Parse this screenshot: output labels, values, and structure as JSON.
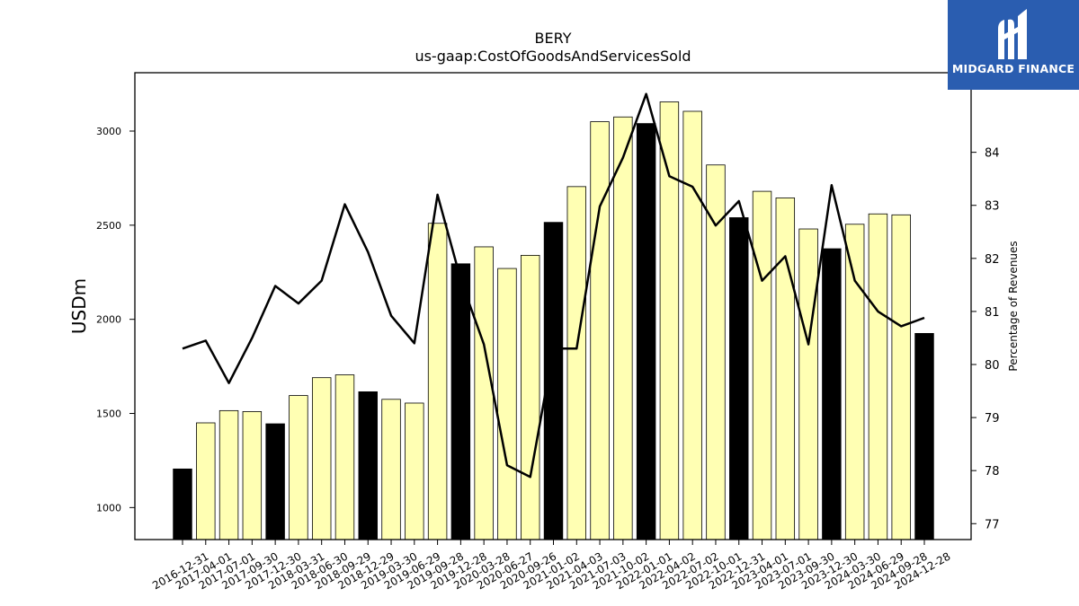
{
  "chart_data": {
    "type": "bar",
    "title": "BERY",
    "subtitle": "us-gaap:CostOfGoodsAndServicesSold",
    "ylabel": "USDm",
    "y2label": "Percentage of Revenues",
    "ylim": [
      830,
      3310
    ],
    "y2lim": [
      76.7,
      85.5
    ],
    "yticks": [
      1000,
      1500,
      2000,
      2500,
      3000
    ],
    "y2ticks": [
      77,
      78,
      79,
      80,
      81,
      82,
      83,
      84
    ],
    "categories": [
      "2016-12-31",
      "2017-04-01",
      "2017-07-01",
      "2017-09-30",
      "2017-12-30",
      "2018-03-31",
      "2018-06-30",
      "2018-09-29",
      "2018-12-29",
      "2019-03-30",
      "2019-06-29",
      "2019-09-28",
      "2019-12-28",
      "2020-03-28",
      "2020-06-27",
      "2020-09-26",
      "2021-01-02",
      "2021-04-03",
      "2021-07-03",
      "2021-10-02",
      "2022-01-01",
      "2022-04-02",
      "2022-07-02",
      "2022-10-01",
      "2022-12-31",
      "2023-04-01",
      "2023-07-01",
      "2023-09-30",
      "2023-12-30",
      "2024-03-30",
      "2024-06-29",
      "2024-09-28",
      "2024-12-28"
    ],
    "series": [
      {
        "kind": "bar",
        "values": [
          1205,
          1450,
          1515,
          1510,
          1445,
          1595,
          1690,
          1705,
          1615,
          1575,
          1555,
          2510,
          2295,
          2385,
          2270,
          2340,
          2515,
          2705,
          3050,
          3075,
          3040,
          3155,
          3105,
          2820,
          2540,
          2680,
          2645,
          2480,
          2375,
          2505,
          2560,
          2555,
          1925
        ],
        "highlight_every": 4,
        "highlight_offset": 0,
        "color": "#ffffb3",
        "highlight_color": "#000000"
      },
      {
        "kind": "line",
        "axis": "right",
        "values": [
          80.3,
          80.45,
          79.65,
          80.5,
          81.48,
          81.15,
          81.58,
          83.02,
          82.12,
          80.92,
          80.4,
          83.2,
          81.6,
          80.38,
          78.1,
          77.88,
          80.3,
          80.3,
          82.98,
          83.9,
          85.1,
          83.55,
          83.35,
          82.62,
          83.08,
          81.58,
          82.04,
          80.38,
          83.38,
          81.58,
          81.0,
          80.72,
          80.88
        ],
        "color": "#000000"
      }
    ]
  },
  "logo": {
    "text": "MIDGARD FINANCE",
    "bg_color": "#2a5db0"
  }
}
